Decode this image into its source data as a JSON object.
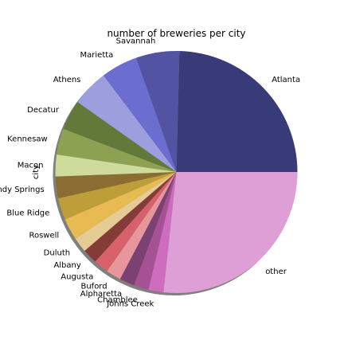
{
  "chart_data": {
    "type": "pie",
    "title": "number of breweries per city",
    "ylabel": "city",
    "xlabel": "",
    "start_angle_deg": 0,
    "direction": "counterclockwise",
    "shadow": true,
    "slices": [
      {
        "label": "Atlanta",
        "value": 24.6,
        "color": "#393b79"
      },
      {
        "label": "Savannah",
        "value": 5.8,
        "color": "#5254a3"
      },
      {
        "label": "Marietta",
        "value": 4.9,
        "color": "#6b6ecf"
      },
      {
        "label": "Athens",
        "value": 4.9,
        "color": "#9c9ede"
      },
      {
        "label": "Decatur",
        "value": 4.0,
        "color": "#637939"
      },
      {
        "label": "Kennesaw",
        "value": 3.5,
        "color": "#8ca252"
      },
      {
        "label": "Macon",
        "value": 2.9,
        "color": "#cedb9c"
      },
      {
        "label": "Sandy Springs",
        "value": 2.9,
        "color": "#8c6d31"
      },
      {
        "label": "Blue Ridge",
        "value": 2.9,
        "color": "#bd9e39"
      },
      {
        "label": "Roswell",
        "value": 2.9,
        "color": "#e7ba52"
      },
      {
        "label": "Duluth",
        "value": 2.0,
        "color": "#e7cb94"
      },
      {
        "label": "Albany",
        "value": 2.0,
        "color": "#843c39"
      },
      {
        "label": "Augusta",
        "value": 2.0,
        "color": "#d6616b"
      },
      {
        "label": "Buford",
        "value": 2.0,
        "color": "#e7969c"
      },
      {
        "label": "Alpharetta",
        "value": 2.0,
        "color": "#7b4173"
      },
      {
        "label": "Chamblee",
        "value": 2.0,
        "color": "#a55194"
      },
      {
        "label": "Johns Creek",
        "value": 2.0,
        "color": "#ce6dbd"
      },
      {
        "label": "other",
        "value": 26.7,
        "color": "#de9ed6"
      }
    ]
  }
}
